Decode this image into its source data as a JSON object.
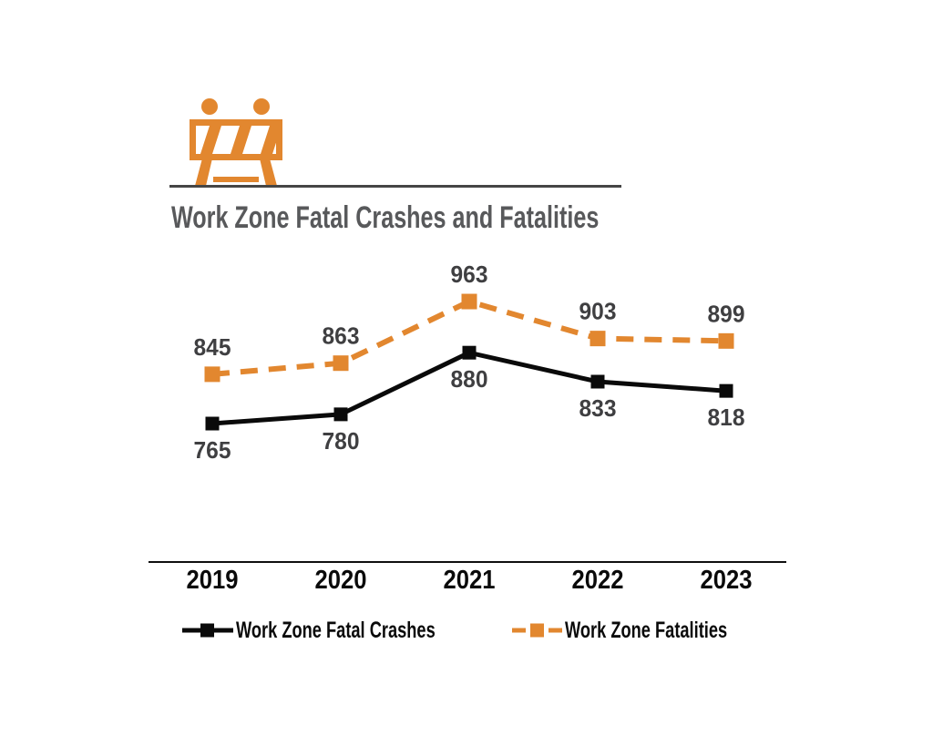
{
  "header": {
    "icon": "construction-barricade-icon",
    "title": "Work Zone Fatal Crashes and Fatalities"
  },
  "colors": {
    "orange": "#E2872F",
    "black": "#0A0A0A",
    "title_gray": "#58595B",
    "data_label_gray": "#3F3F41",
    "divider_gray": "#454545"
  },
  "chart_data": {
    "type": "line",
    "title": "Work Zone Fatal Crashes and Fatalities",
    "categories": [
      "2019",
      "2020",
      "2021",
      "2022",
      "2023"
    ],
    "series": [
      {
        "name": "Work Zone Fatal Crashes",
        "values": [
          765,
          780,
          880,
          833,
          818
        ],
        "color": "#0A0A0A",
        "style": "solid",
        "marker": "square",
        "label_position": "below"
      },
      {
        "name": "Work Zone Fatalities",
        "values": [
          845,
          863,
          963,
          903,
          899
        ],
        "color": "#E2872F",
        "style": "dashed",
        "marker": "square",
        "label_position": "above"
      }
    ],
    "xlabel": "",
    "ylabel": "",
    "ylim": [
      700,
      1000
    ],
    "grid": false,
    "y_axis_visible": false,
    "data_labels": true,
    "legend_position": "bottom"
  },
  "legend": {
    "items": [
      {
        "label": "Work Zone Fatal Crashes",
        "color": "#0A0A0A",
        "style": "solid"
      },
      {
        "label": "Work Zone Fatalities",
        "color": "#E2872F",
        "style": "dashed"
      }
    ]
  }
}
